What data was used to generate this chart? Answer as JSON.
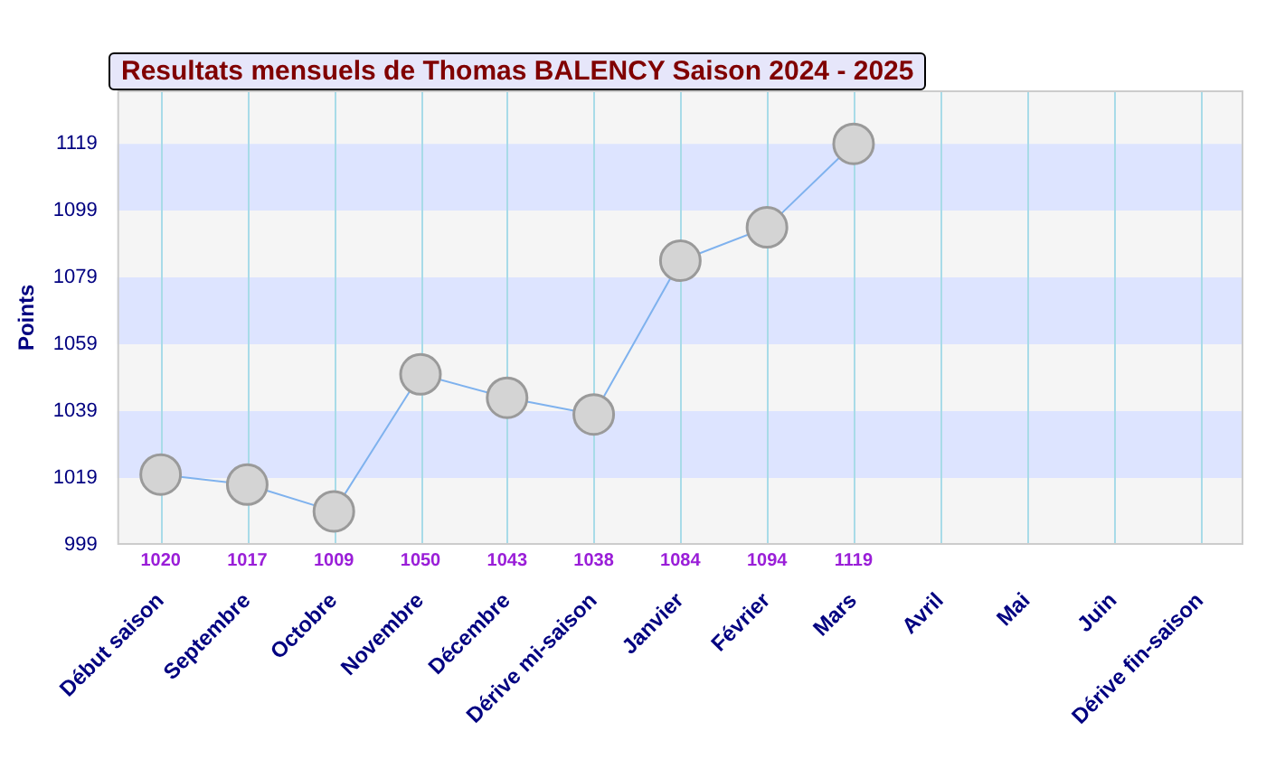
{
  "chart_data": {
    "type": "line",
    "title": "Resultats mensuels de Thomas BALENCY Saison 2024 - 2025",
    "ylabel": "Points",
    "categories": [
      "Début saison",
      "Septembre",
      "Octobre",
      "Novembre",
      "Décembre",
      "Dérive mi-saison",
      "Janvier",
      "Février",
      "Mars",
      "Avril",
      "Mai",
      "Juin",
      "Dérive fin-saison"
    ],
    "series": [
      {
        "color": "#7fb2ee",
        "values": [
          1020,
          1017,
          1009,
          1050,
          1043,
          1038,
          1084,
          1094,
          1119,
          null,
          null,
          null,
          null
        ]
      }
    ],
    "ylim": [
      999,
      1135
    ],
    "yticks": [
      999,
      1019,
      1039,
      1059,
      1079,
      1099,
      1119
    ],
    "bands": [
      {
        "axis": "y",
        "from": 1019,
        "to": 1039,
        "color": "#dde4ff"
      },
      {
        "axis": "y",
        "from": 1059,
        "to": 1079,
        "color": "#dde4ff"
      },
      {
        "axis": "y",
        "from": 1099,
        "to": 1119,
        "color": "#dde4ff"
      }
    ],
    "grid": "x",
    "marker": "circle",
    "data_labels": true,
    "legend": false
  }
}
